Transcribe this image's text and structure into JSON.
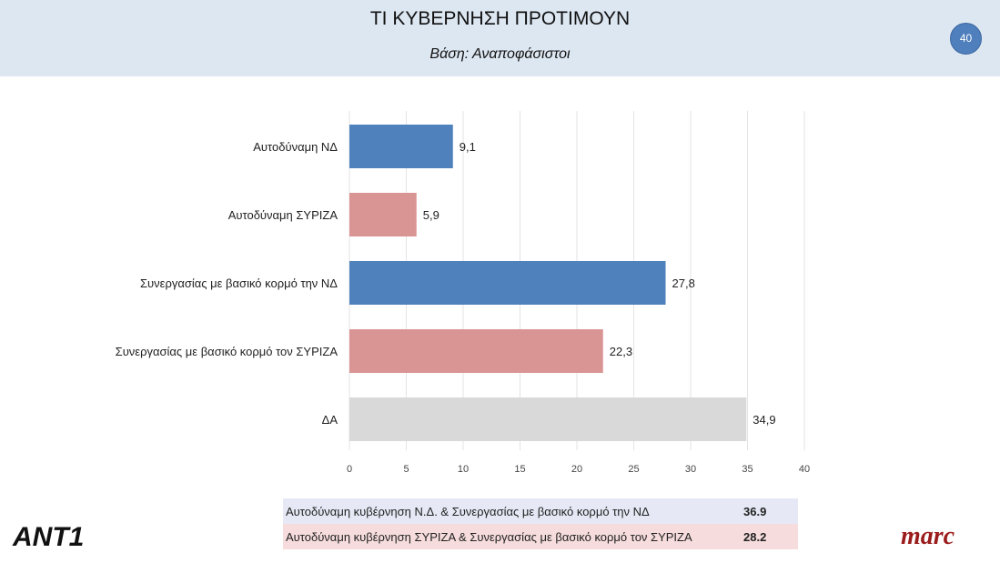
{
  "header": {
    "title": "ΤΙ ΚΥΒΕΡΝΗΣΗ ΠΡΟΤΙΜΟΥΝ",
    "subtitle": "Βάση: Αναποφάσιστοι",
    "page_number": "40"
  },
  "chart_data": {
    "type": "bar",
    "orientation": "horizontal",
    "title": "",
    "xlabel": "",
    "ylabel": "",
    "categories": [
      "Αυτοδύναμη ΝΔ",
      "Αυτοδύναμη ΣΥΡΙΖΑ",
      "Συνεργασίας με βασικό κορμό την ΝΔ",
      "Συνεργασίας με βασικό κορμό τον ΣΥΡΙΖΑ",
      "ΔΑ"
    ],
    "values": [
      9.1,
      5.9,
      27.8,
      22.3,
      34.9
    ],
    "value_labels": [
      "9,1",
      "5,9",
      "27,8",
      "22,3",
      "34,9"
    ],
    "colors": [
      "#4f81bd",
      "#d99594",
      "#4f81bd",
      "#d99594",
      "#d9d9d9"
    ],
    "xlim": [
      0,
      40
    ],
    "xticks": [
      0,
      5,
      10,
      15,
      20,
      25,
      30,
      35,
      40
    ],
    "grid": "vertical",
    "legend": "none"
  },
  "summary": [
    {
      "label": "Αυτοδύναμη κυβέρνηση Ν.Δ. & Συνεργασίας με βασικό κορμό την ΝΔ",
      "value": "36.9",
      "color": "#e6e9f5"
    },
    {
      "label": "Αυτοδύναμη κυβέρνηση ΣΥΡΙΖΑ & Συνεργασίας με βασικό κορμό τον ΣΥΡΙΖΑ",
      "value": "28.2",
      "color": "#f6dcdc"
    }
  ],
  "logos": {
    "left": "ANT1",
    "right": "marc"
  }
}
